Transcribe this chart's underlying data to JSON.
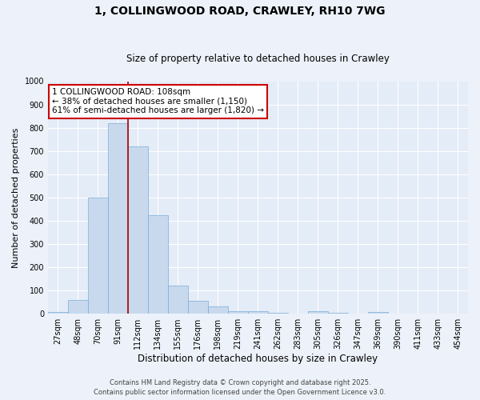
{
  "title_line1": "1, COLLINGWOOD ROAD, CRAWLEY, RH10 7WG",
  "title_line2": "Size of property relative to detached houses in Crawley",
  "xlabel": "Distribution of detached houses by size in Crawley",
  "ylabel": "Number of detached properties",
  "categories": [
    "27sqm",
    "48sqm",
    "70sqm",
    "91sqm",
    "112sqm",
    "134sqm",
    "155sqm",
    "176sqm",
    "198sqm",
    "219sqm",
    "241sqm",
    "262sqm",
    "283sqm",
    "305sqm",
    "326sqm",
    "347sqm",
    "369sqm",
    "390sqm",
    "411sqm",
    "433sqm",
    "454sqm"
  ],
  "values": [
    8,
    58,
    500,
    820,
    720,
    425,
    120,
    55,
    33,
    12,
    12,
    5,
    0,
    10,
    4,
    0,
    8,
    0,
    0,
    0,
    0
  ],
  "bar_color": "#c8d9ee",
  "bar_edge_color": "#7aadd4",
  "red_line_color": "#aa0000",
  "red_line_x": 3.5,
  "annotation_text_line1": "1 COLLINGWOOD ROAD: 108sqm",
  "annotation_text_line2": "← 38% of detached houses are smaller (1,150)",
  "annotation_text_line3": "61% of semi-detached houses are larger (1,820) →",
  "annotation_box_color": "#ffffff",
  "annotation_border_color": "#cc0000",
  "ylim": [
    0,
    1000
  ],
  "yticks": [
    0,
    100,
    200,
    300,
    400,
    500,
    600,
    700,
    800,
    900,
    1000
  ],
  "footer_line1": "Contains HM Land Registry data © Crown copyright and database right 2025.",
  "footer_line2": "Contains public sector information licensed under the Open Government Licence v3.0.",
  "bg_color": "#edf2fa",
  "plot_bg_color": "#e4ecf7",
  "title_fontsize": 10,
  "subtitle_fontsize": 8.5,
  "xlabel_fontsize": 8.5,
  "ylabel_fontsize": 8,
  "tick_fontsize": 7,
  "footer_fontsize": 6,
  "annotation_fontsize": 7.5
}
